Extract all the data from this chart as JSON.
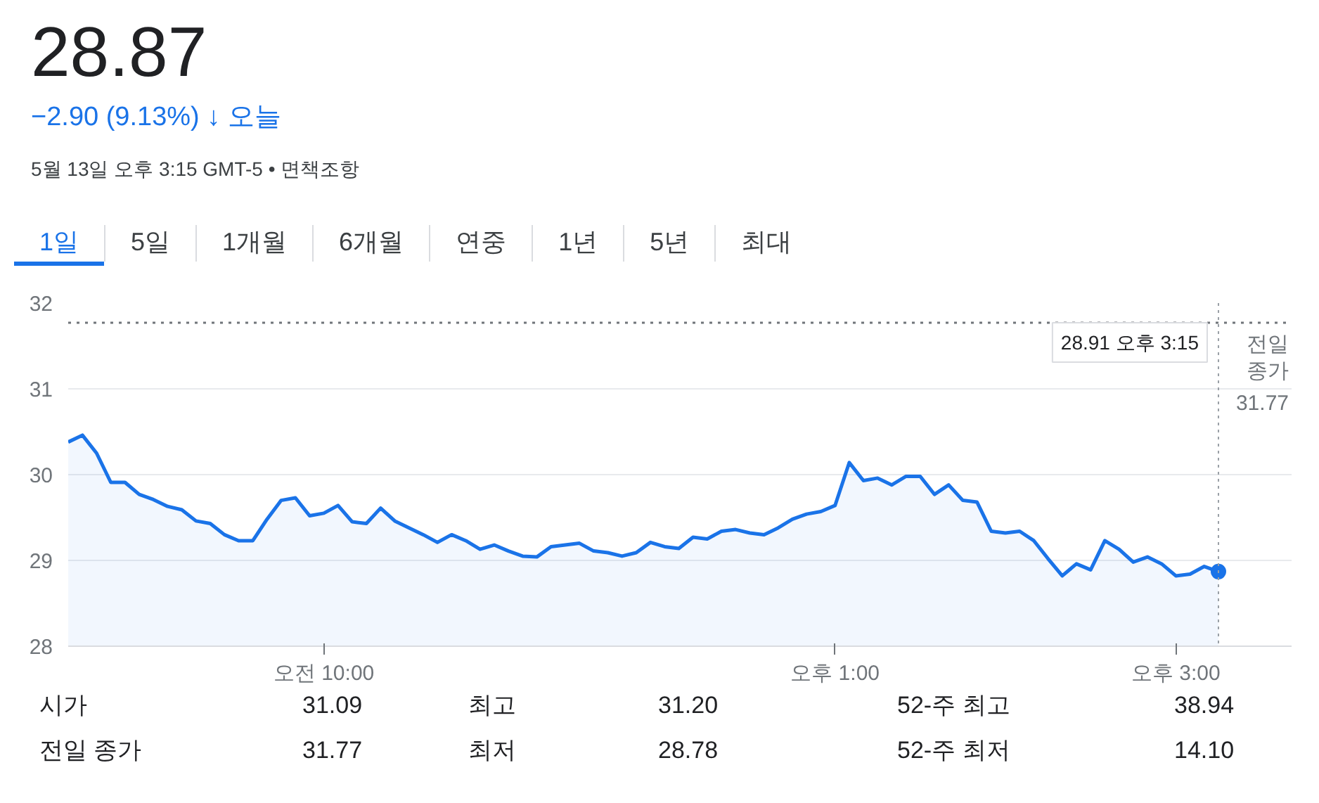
{
  "chart_data": {
    "type": "area",
    "title": "28.87",
    "subtitle": "−2.90 (9.13%) ↓ 오늘",
    "annotations": [
      "5월 13일 오후 3:15 GMT-5 • 면책조항",
      "1일",
      "5일",
      "1개월",
      "6개월",
      "연중",
      "1년",
      "5년",
      "최대",
      "28.91 오후 3:15",
      "시가",
      "31.09",
      "최고",
      "31.20",
      "52-주 최고",
      "38.94",
      "전일 종가",
      "31.77",
      "최저",
      "28.78",
      "52-주 최저",
      "14.10"
    ],
    "categories": [
      null,
      null,
      null,
      null,
      null,
      null,
      null,
      null,
      null,
      null,
      null,
      null,
      null,
      null,
      null,
      null,
      null,
      null,
      "오전 10:00",
      null,
      null,
      null,
      null,
      null,
      null,
      null,
      null,
      null,
      null,
      null,
      null,
      null,
      null,
      null,
      null,
      null,
      null,
      null,
      null,
      null,
      null,
      null,
      null,
      null,
      null,
      null,
      null,
      null,
      null,
      null,
      null,
      null,
      null,
      null,
      "오후 1:00",
      null,
      null,
      null,
      null,
      null,
      null,
      null,
      null,
      null,
      null,
      null,
      null,
      null,
      null,
      null,
      null,
      null,
      null,
      null,
      null,
      null,
      null,
      null,
      "오후 3:00",
      null,
      null,
      null
    ],
    "series": [
      {
        "color": "#1a73e8",
        "values": [
          30.38,
          30.46,
          30.25,
          29.91,
          29.91,
          29.77,
          29.71,
          29.63,
          29.59,
          29.46,
          29.43,
          29.3,
          29.23,
          29.23,
          29.48,
          29.7,
          29.73,
          29.52,
          29.55,
          29.64,
          29.45,
          29.43,
          29.61,
          29.46,
          29.38,
          29.3,
          29.21,
          29.3,
          29.23,
          29.13,
          29.18,
          29.11,
          29.05,
          29.04,
          29.16,
          29.18,
          29.2,
          29.11,
          29.09,
          29.05,
          29.09,
          29.21,
          29.16,
          29.14,
          29.27,
          29.25,
          29.34,
          29.36,
          29.32,
          29.3,
          29.38,
          29.48,
          29.54,
          29.57,
          29.64,
          30.14,
          29.93,
          29.96,
          29.88,
          29.98,
          29.98,
          29.77,
          29.88,
          29.7,
          29.68,
          29.34,
          29.32,
          29.34,
          29.23,
          29.02,
          28.82,
          28.96,
          28.89,
          29.23,
          29.13,
          28.98,
          29.04,
          28.96,
          28.82,
          28.84,
          28.93,
          28.87
        ]
      }
    ],
    "ylim": [
      28,
      32
    ],
    "yticks": [
      28,
      29,
      30,
      31,
      32
    ],
    "ref_lines": [
      {
        "axis": "y",
        "value": 31.77,
        "label": "전일 종가",
        "line_style": "dotted",
        "color": "#70757a"
      }
    ],
    "grid": "y"
  }
}
